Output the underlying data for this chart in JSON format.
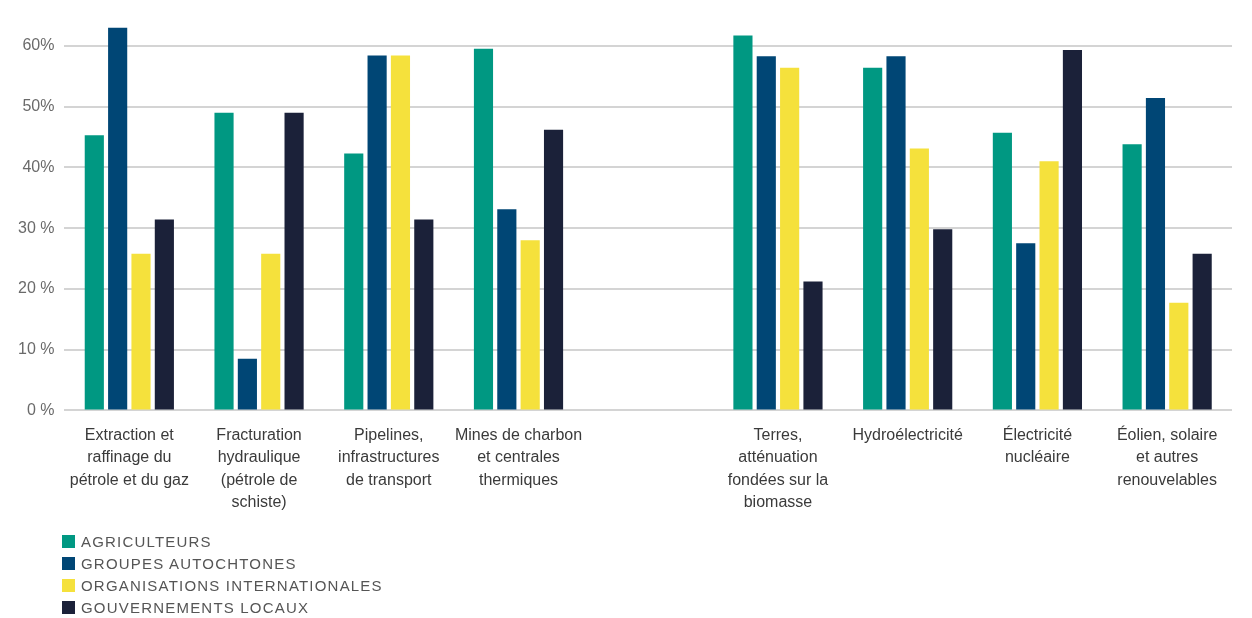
{
  "chart_data": {
    "type": "bar",
    "categories": [
      "Extraction et raffinage du pétrole et du gaz",
      "Fracturation hydraulique (pétrole de schiste)",
      "Pipelines, infrastructures de transport",
      "Mines de charbon et centrales thermiques",
      null,
      "Terres, atténuation fondées sur la biomasse",
      "Hydroélectricité",
      "Électricité nucléaire",
      "Éolien, solaire et autres renouvelables"
    ],
    "series": [
      {
        "name": "AGRICULTEURS",
        "color": "#009882",
        "values": [
          45.3,
          49,
          42.3,
          59.5,
          null,
          61.7,
          56.4,
          45.7,
          43.8
        ]
      },
      {
        "name": "GROUPES AUTOCHTONES",
        "color": "#004675",
        "values": [
          63,
          8.5,
          58.4,
          33.1,
          null,
          58.3,
          58.3,
          27.5,
          51.4
        ]
      },
      {
        "name": "ORGANISATIONS INTERNATIONALES",
        "color": "#f5e13c",
        "values": [
          25.8,
          25.8,
          58.4,
          28,
          null,
          56.4,
          43.1,
          41,
          17.7
        ]
      },
      {
        "name": "GOUVERNEMENTS LOCAUX",
        "color": "#1b2139",
        "values": [
          31.4,
          49,
          31.4,
          46.2,
          null,
          21.2,
          29.8,
          59.3,
          25.8
        ]
      }
    ],
    "ylim": [
      0,
      63
    ],
    "yticks": [
      {
        "value": 0,
        "label": "0 %"
      },
      {
        "value": 10,
        "label": "10 %"
      },
      {
        "value": 20,
        "label": "20 %"
      },
      {
        "value": 30,
        "label": "30 %"
      },
      {
        "value": 40,
        "label": "40%"
      },
      {
        "value": 50,
        "label": "50%"
      },
      {
        "value": 60,
        "label": "60%"
      }
    ],
    "grid": "y",
    "legend": "bottom left"
  }
}
